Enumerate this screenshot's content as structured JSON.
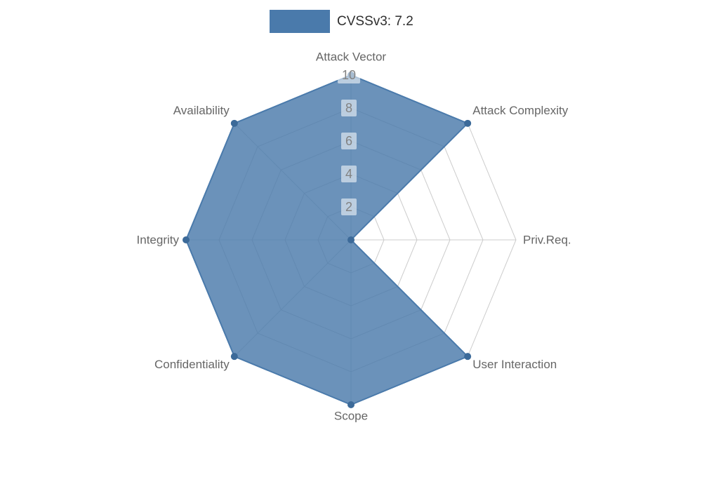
{
  "legend": {
    "label": "CVSSv3: 7.2"
  },
  "chart_data": {
    "type": "radar",
    "title": "CVSSv3: 7.2",
    "score": 7.2,
    "categories": [
      "Attack Vector",
      "Attack Complexity",
      "Priv.Req.",
      "User Interaction",
      "Scope",
      "Confidentiality",
      "Integrity",
      "Availability"
    ],
    "series": [
      {
        "name": "CVSSv3: 7.2",
        "values": [
          10,
          10,
          0,
          10,
          10,
          10,
          10,
          10
        ]
      }
    ],
    "radial_ticks": [
      2,
      4,
      6,
      8,
      10
    ],
    "rlim": [
      0,
      10
    ],
    "grid": true,
    "legend_position": "top",
    "colors": {
      "fill": "#4a7aab",
      "marker": "#3c6a99",
      "grid": "#cccccc",
      "axis_label": "#666666",
      "tick_text": "#828282",
      "tick_bg": "#ffffff"
    }
  }
}
